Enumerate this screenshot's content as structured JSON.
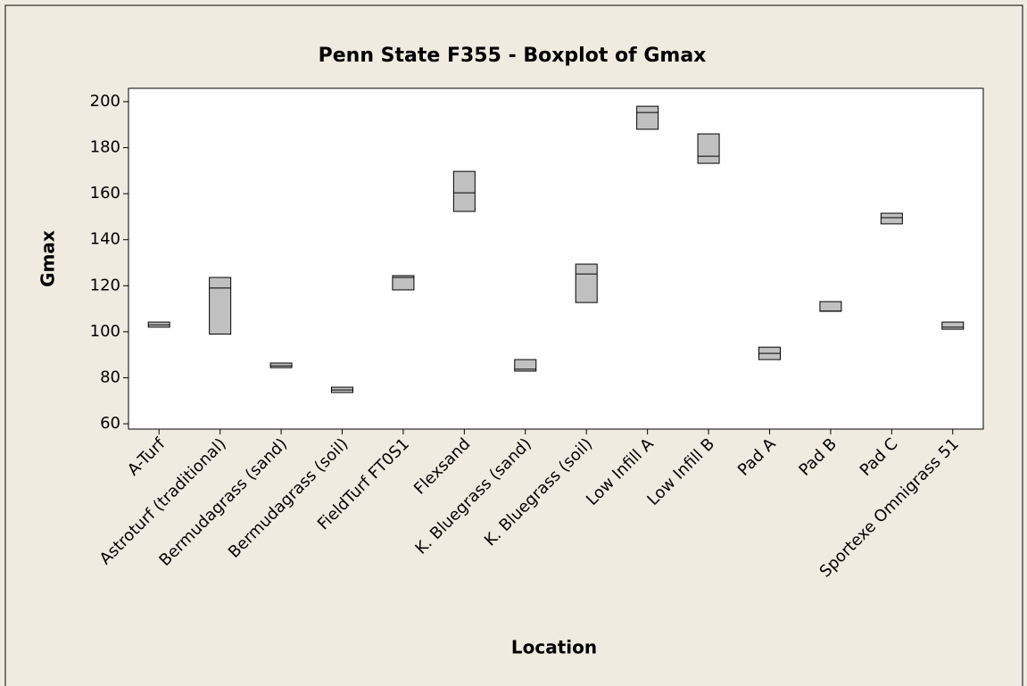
{
  "chart_data": {
    "type": "box",
    "title": "Penn State F355 - Boxplot of Gmax",
    "x_label": "Location",
    "y_label": "Gmax",
    "categories": [
      "A-Turf",
      "Astroturf (traditional)",
      "Bermudagrass (sand)",
      "Bermudagrass (soil)",
      "FieldTurf FT0S1",
      "Flexsand",
      "K. Bluegrass (sand)",
      "K. Bluegrass (soil)",
      "Low Infill A",
      "Low Infill B",
      "Pad A",
      "Pad B",
      "Pad C",
      "Sportexe Omnigrass 51"
    ],
    "q1": [
      102,
      99,
      84.4,
      73.6,
      118.2,
      152.3,
      82.9,
      112.7,
      188,
      173.2,
      87.9,
      108.9,
      146.9,
      101.1
    ],
    "median": [
      103,
      119,
      85.2,
      74.7,
      123.6,
      160.4,
      83.7,
      125.1,
      195.3,
      176.3,
      90.6,
      109,
      149.6,
      102
    ],
    "q3": [
      104.2,
      123.6,
      86.4,
      75.9,
      124.4,
      169.7,
      87.9,
      129.4,
      198,
      186,
      93.3,
      113.1,
      151.5,
      104.2
    ],
    "color": "#c0c0c0",
    "ylim": [
      57.7,
      205.8
    ],
    "yticks": [
      60,
      80,
      100,
      120,
      140,
      160,
      180,
      200
    ]
  }
}
